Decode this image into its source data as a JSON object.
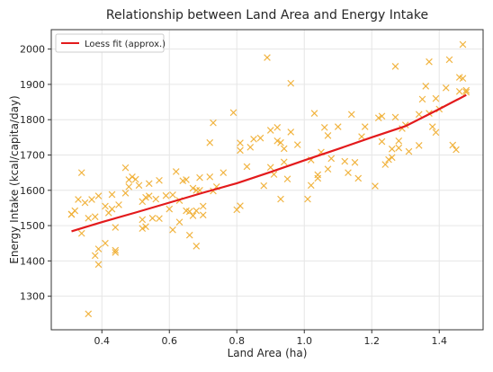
{
  "chart_data": {
    "type": "scatter",
    "title": "Relationship between Land Area and Energy Intake",
    "xlabel": "Land Area (ha)",
    "ylabel": "Energy Intake (kcal/capita/day)",
    "xlim": [
      0.25,
      1.53
    ],
    "ylim": [
      1205,
      2055
    ],
    "xticks": [
      0.4,
      0.6,
      0.8,
      1.0,
      1.2,
      1.4
    ],
    "xtick_labels": [
      "0.4",
      "0.6",
      "0.8",
      "1.0",
      "1.2",
      "1.4"
    ],
    "yticks": [
      1300,
      1400,
      1500,
      1600,
      1700,
      1800,
      1900,
      2000
    ],
    "ytick_labels": [
      "1300",
      "1400",
      "1500",
      "1600",
      "1700",
      "1800",
      "1900",
      "2000"
    ],
    "grid": true,
    "legend": {
      "position": "top-left",
      "entries": [
        {
          "label": "Loess fit (approx.)",
          "color": "#e31a1c"
        }
      ]
    },
    "colors": {
      "points": "#f0ad2f",
      "fit": "#e31a1c",
      "grid": "#e6e6e6"
    },
    "points": [
      [
        0.31,
        1532
      ],
      [
        0.31,
        1532
      ],
      [
        0.32,
        1542
      ],
      [
        0.33,
        1574
      ],
      [
        0.34,
        1650
      ],
      [
        0.34,
        1478
      ],
      [
        0.35,
        1565
      ],
      [
        0.36,
        1521
      ],
      [
        0.36,
        1250
      ],
      [
        0.37,
        1574
      ],
      [
        0.38,
        1525
      ],
      [
        0.38,
        1415
      ],
      [
        0.39,
        1584
      ],
      [
        0.39,
        1434
      ],
      [
        0.39,
        1390
      ],
      [
        0.41,
        1450
      ],
      [
        0.41,
        1555
      ],
      [
        0.42,
        1536
      ],
      [
        0.43,
        1588
      ],
      [
        0.43,
        1547
      ],
      [
        0.44,
        1430
      ],
      [
        0.44,
        1424
      ],
      [
        0.44,
        1495
      ],
      [
        0.45,
        1559
      ],
      [
        0.47,
        1664
      ],
      [
        0.47,
        1592
      ],
      [
        0.48,
        1630
      ],
      [
        0.48,
        1610
      ],
      [
        0.49,
        1638
      ],
      [
        0.5,
        1631
      ],
      [
        0.51,
        1614
      ],
      [
        0.52,
        1568
      ],
      [
        0.52,
        1517
      ],
      [
        0.52,
        1492
      ],
      [
        0.53,
        1580
      ],
      [
        0.53,
        1497
      ],
      [
        0.54,
        1619
      ],
      [
        0.54,
        1584
      ],
      [
        0.55,
        1521
      ],
      [
        0.56,
        1575
      ],
      [
        0.57,
        1628
      ],
      [
        0.57,
        1520
      ],
      [
        0.59,
        1585
      ],
      [
        0.6,
        1547
      ],
      [
        0.61,
        1488
      ],
      [
        0.61,
        1587
      ],
      [
        0.62,
        1653
      ],
      [
        0.63,
        1510
      ],
      [
        0.63,
        1571
      ],
      [
        0.64,
        1627
      ],
      [
        0.65,
        1542
      ],
      [
        0.65,
        1630
      ],
      [
        0.66,
        1473
      ],
      [
        0.66,
        1540
      ],
      [
        0.67,
        1528
      ],
      [
        0.67,
        1606
      ],
      [
        0.68,
        1600
      ],
      [
        0.68,
        1442
      ],
      [
        0.68,
        1542
      ],
      [
        0.69,
        1636
      ],
      [
        0.69,
        1600
      ],
      [
        0.7,
        1530
      ],
      [
        0.7,
        1555
      ],
      [
        0.72,
        1638
      ],
      [
        0.72,
        1735
      ],
      [
        0.73,
        1791
      ],
      [
        0.73,
        1598
      ],
      [
        0.74,
        1610
      ],
      [
        0.76,
        1650
      ],
      [
        0.79,
        1820
      ],
      [
        0.8,
        1545
      ],
      [
        0.81,
        1734
      ],
      [
        0.81,
        1713
      ],
      [
        0.81,
        1556
      ],
      [
        0.83,
        1667
      ],
      [
        0.84,
        1722
      ],
      [
        0.85,
        1745
      ],
      [
        0.87,
        1748
      ],
      [
        0.88,
        1613
      ],
      [
        0.89,
        1976
      ],
      [
        0.9,
        1770
      ],
      [
        0.9,
        1665
      ],
      [
        0.91,
        1645
      ],
      [
        0.92,
        1740
      ],
      [
        0.92,
        1778
      ],
      [
        0.93,
        1735
      ],
      [
        0.93,
        1575
      ],
      [
        0.94,
        1680
      ],
      [
        0.94,
        1718
      ],
      [
        0.95,
        1632
      ],
      [
        0.96,
        1903
      ],
      [
        0.96,
        1765
      ],
      [
        0.98,
        1729
      ],
      [
        1.01,
        1575
      ],
      [
        1.02,
        1614
      ],
      [
        1.02,
        1686
      ],
      [
        1.03,
        1818
      ],
      [
        1.04,
        1634
      ],
      [
        1.04,
        1644
      ],
      [
        1.05,
        1708
      ],
      [
        1.06,
        1778
      ],
      [
        1.07,
        1660
      ],
      [
        1.07,
        1755
      ],
      [
        1.08,
        1690
      ],
      [
        1.1,
        1780
      ],
      [
        1.12,
        1682
      ],
      [
        1.13,
        1650
      ],
      [
        1.14,
        1815
      ],
      [
        1.15,
        1679
      ],
      [
        1.16,
        1634
      ],
      [
        1.17,
        1752
      ],
      [
        1.18,
        1780
      ],
      [
        1.21,
        1612
      ],
      [
        1.22,
        1805
      ],
      [
        1.23,
        1810
      ],
      [
        1.23,
        1738
      ],
      [
        1.24,
        1673
      ],
      [
        1.25,
        1687
      ],
      [
        1.26,
        1693
      ],
      [
        1.26,
        1717
      ],
      [
        1.27,
        1951
      ],
      [
        1.27,
        1807
      ],
      [
        1.28,
        1740
      ],
      [
        1.28,
        1720
      ],
      [
        1.29,
        1775
      ],
      [
        1.3,
        1785
      ],
      [
        1.31,
        1710
      ],
      [
        1.34,
        1815
      ],
      [
        1.34,
        1727
      ],
      [
        1.35,
        1858
      ],
      [
        1.36,
        1895
      ],
      [
        1.37,
        1964
      ],
      [
        1.37,
        1818
      ],
      [
        1.38,
        1780
      ],
      [
        1.39,
        1860
      ],
      [
        1.39,
        1764
      ],
      [
        1.4,
        1830
      ],
      [
        1.42,
        1890
      ],
      [
        1.43,
        1970
      ],
      [
        1.44,
        1728
      ],
      [
        1.45,
        1715
      ],
      [
        1.46,
        1880
      ],
      [
        1.46,
        1920
      ],
      [
        1.47,
        2013
      ],
      [
        1.47,
        1917
      ],
      [
        1.48,
        1883
      ],
      [
        1.48,
        1878
      ]
    ],
    "fit": [
      [
        0.31,
        1484
      ],
      [
        0.4,
        1510
      ],
      [
        0.5,
        1537
      ],
      [
        0.6,
        1565
      ],
      [
        0.7,
        1593
      ],
      [
        0.8,
        1620
      ],
      [
        0.9,
        1652
      ],
      [
        1.0,
        1685
      ],
      [
        1.1,
        1717
      ],
      [
        1.2,
        1750
      ],
      [
        1.3,
        1782
      ],
      [
        1.4,
        1830
      ],
      [
        1.48,
        1870
      ]
    ]
  }
}
